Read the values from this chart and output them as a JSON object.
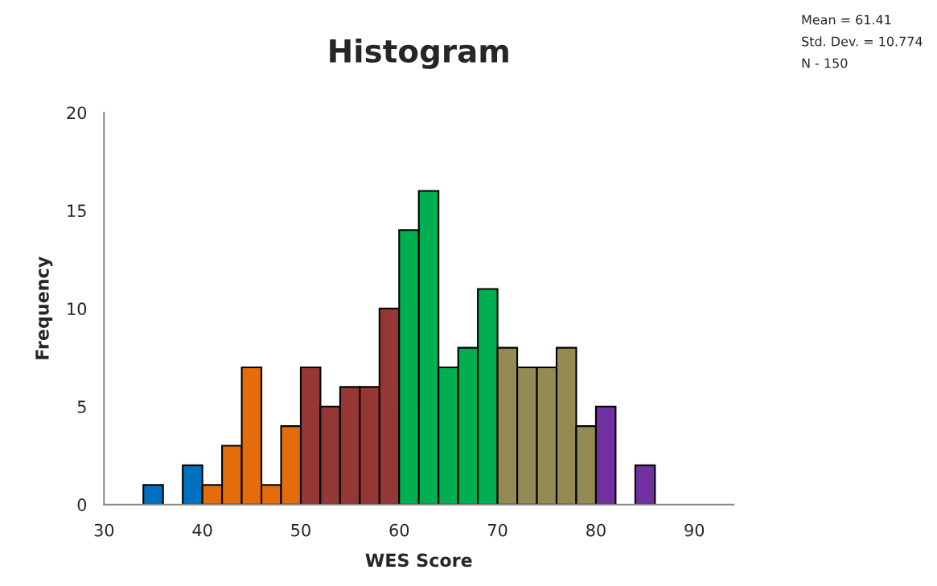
{
  "chart_data": {
    "type": "histogram",
    "title": "Histogram",
    "xlabel": "WES Score",
    "ylabel": "Frequency",
    "bins": [
      34,
      36,
      38,
      40,
      42,
      44,
      46,
      48,
      50,
      52,
      54,
      56,
      58,
      60,
      62,
      64,
      66,
      68,
      70,
      72,
      74,
      76,
      78,
      80,
      82,
      84,
      86
    ],
    "values": [
      1,
      0,
      2,
      1,
      3,
      7,
      1,
      4,
      7,
      5,
      6,
      6,
      10,
      14,
      16,
      7,
      8,
      11,
      8,
      7,
      7,
      8,
      4,
      5,
      0,
      2
    ],
    "colors": [
      "#0070c0",
      "#0070c0",
      "#0070c0",
      "#e46c0a",
      "#e46c0a",
      "#e46c0a",
      "#e46c0a",
      "#e46c0a",
      "#953735",
      "#953735",
      "#953735",
      "#953735",
      "#953735",
      "#00b050",
      "#00b050",
      "#00b050",
      "#00b050",
      "#00b050",
      "#948a54",
      "#948a54",
      "#948a54",
      "#948a54",
      "#948a54",
      "#7030a0",
      "#7030a0",
      "#7030a0"
    ],
    "xlim": [
      30,
      94
    ],
    "xticks": [
      30,
      40,
      50,
      60,
      70,
      80,
      90
    ],
    "ylim": [
      0,
      20
    ],
    "yticks": [
      0,
      5,
      10,
      15,
      20
    ],
    "grid": false,
    "legend": false,
    "annotations": [
      "Mean = 61.41",
      "Std. Dev. = 10.774",
      "N - 150"
    ]
  }
}
